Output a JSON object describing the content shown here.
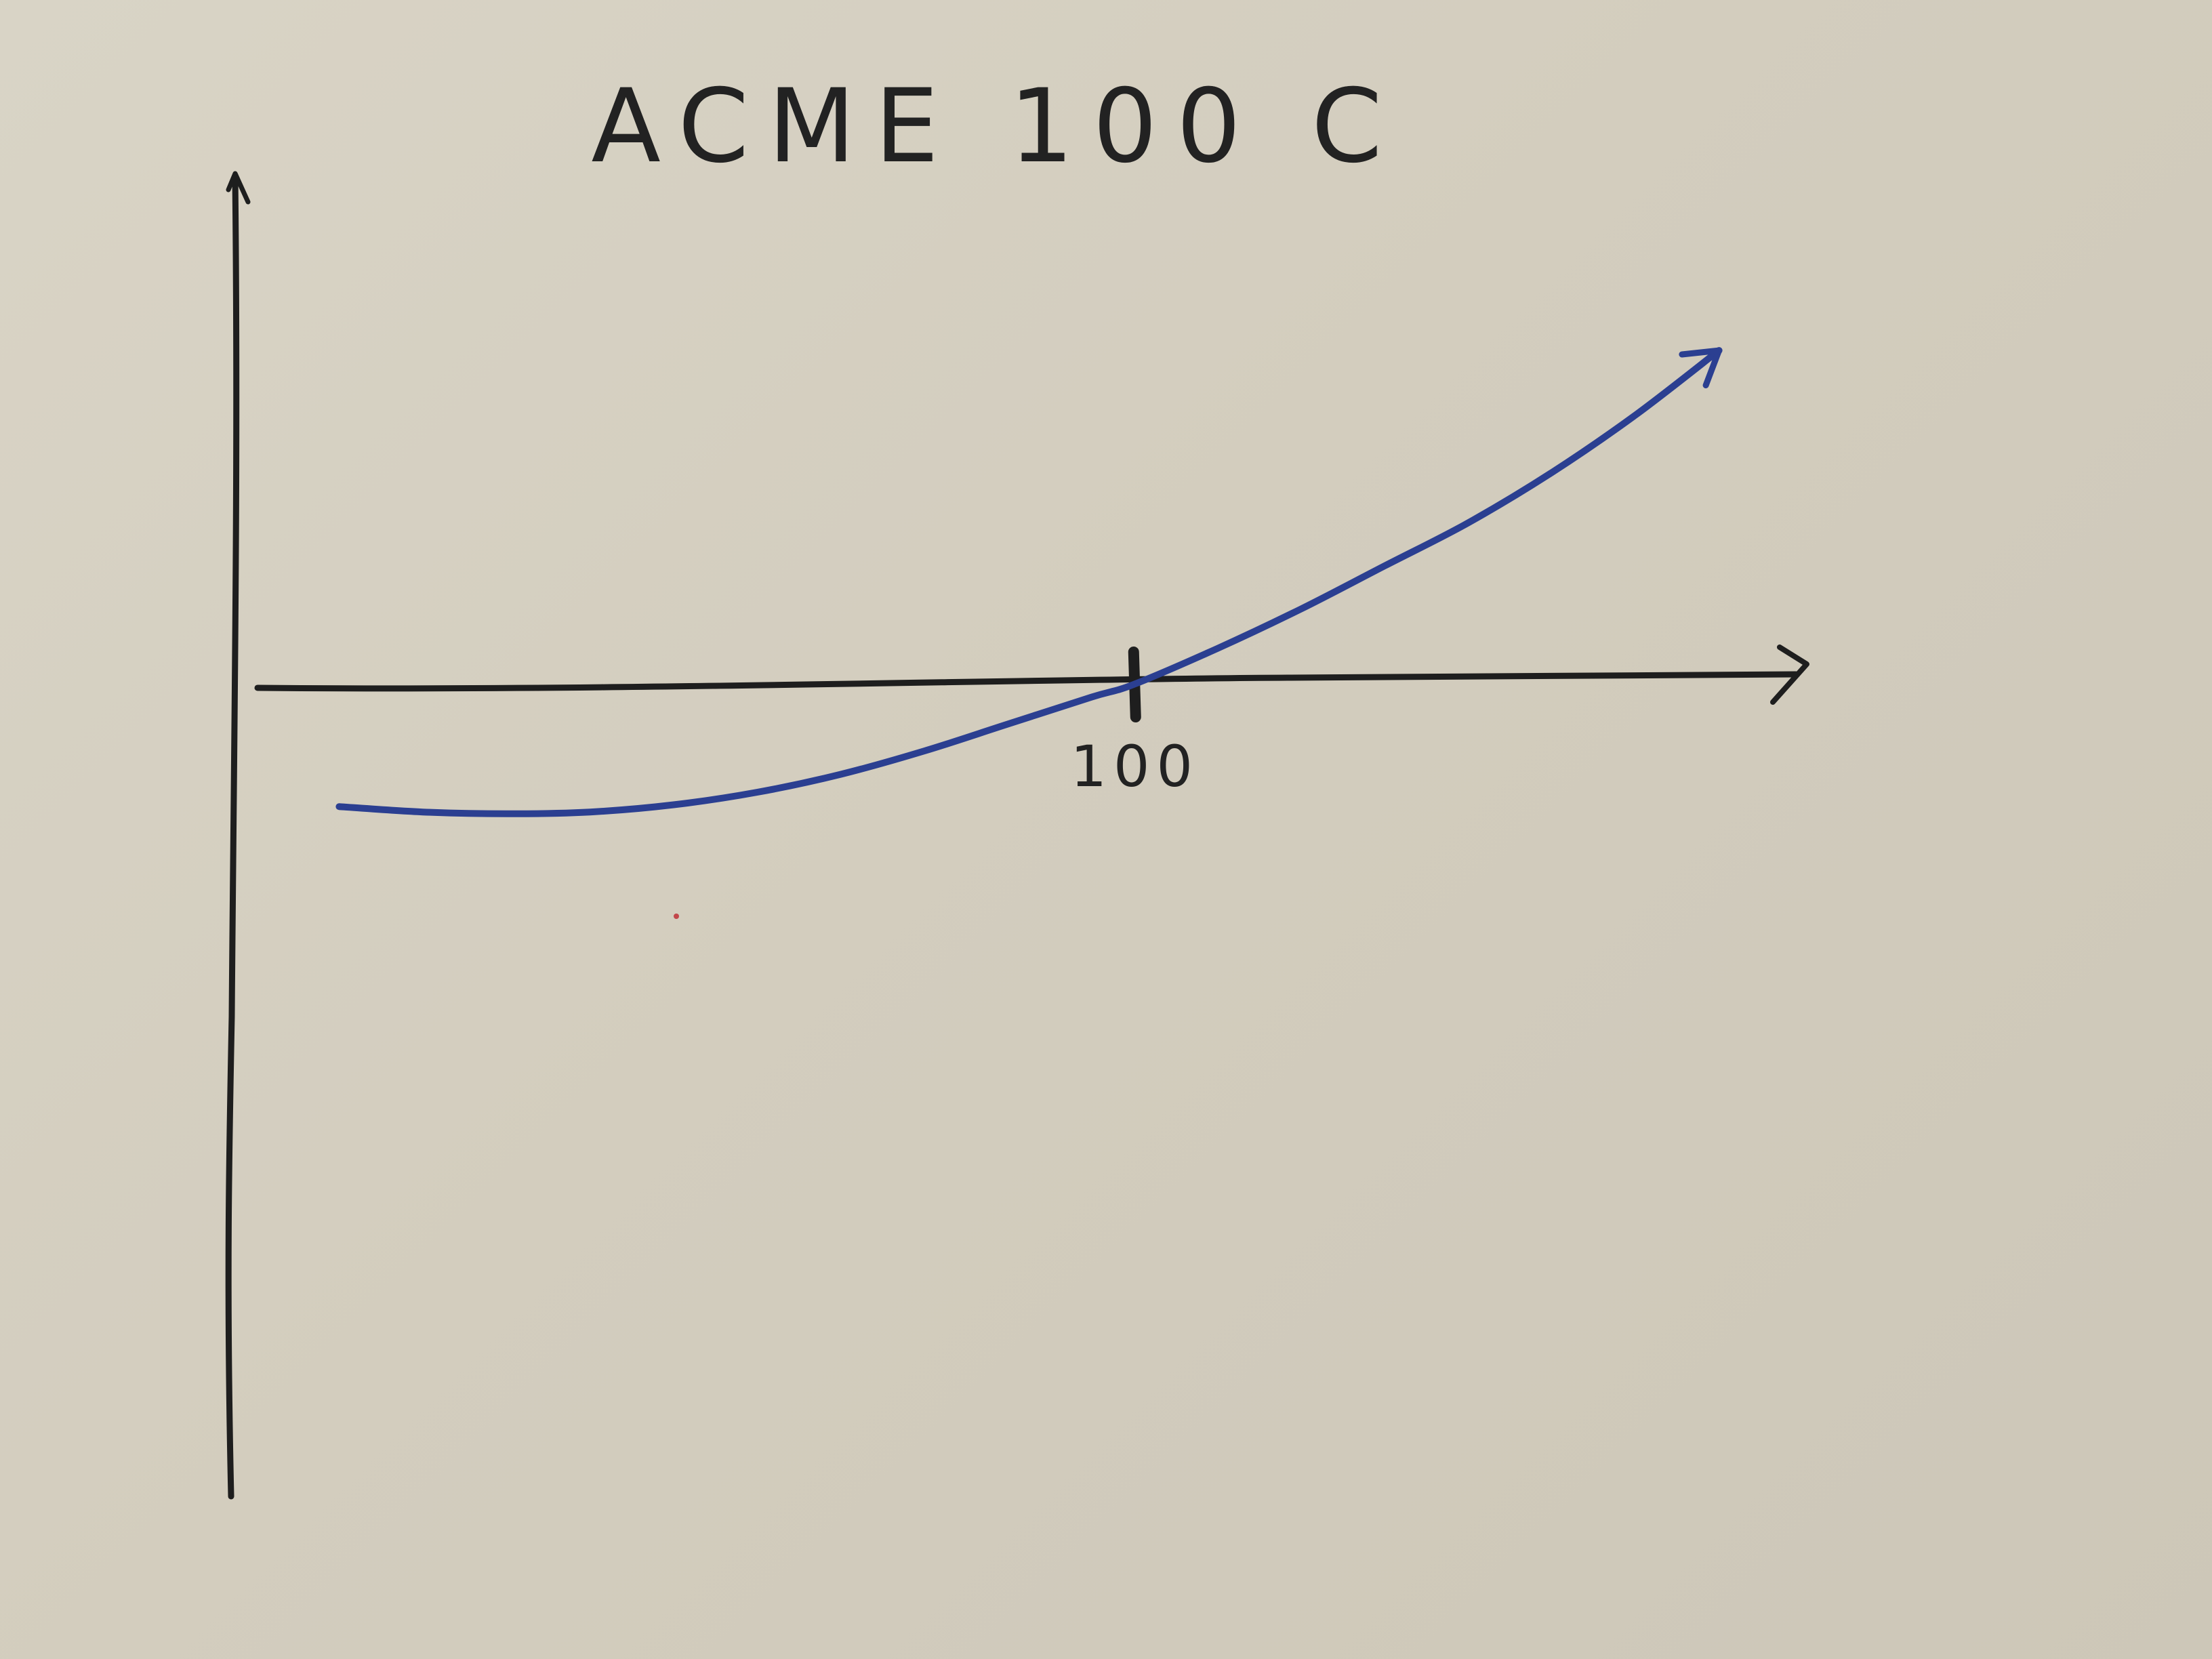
{
  "chart_data": {
    "type": "line",
    "title": "ACME 100 C",
    "xlabel": "",
    "ylabel": "",
    "x_ticks": [
      {
        "value": 100,
        "label": "100"
      }
    ],
    "xlim": [
      -8,
      180
    ],
    "ylim": [
      -5.6,
      10.4
    ],
    "grid": false,
    "legend": "none",
    "series": [
      {
        "color": "#2b3f91",
        "points": [
          [
            5,
            -3.4
          ],
          [
            15,
            -3.55
          ],
          [
            25,
            -3.6
          ],
          [
            35,
            -3.55
          ],
          [
            45,
            -3.35
          ],
          [
            55,
            -3.0
          ],
          [
            65,
            -2.5
          ],
          [
            75,
            -1.85
          ],
          [
            85,
            -1.1
          ],
          [
            95,
            -0.35
          ],
          [
            100,
            0
          ],
          [
            110,
            1.0
          ],
          [
            120,
            2.1
          ],
          [
            130,
            3.3
          ],
          [
            140,
            4.5
          ],
          [
            150,
            5.9
          ],
          [
            160,
            7.5
          ],
          [
            170,
            9.3
          ]
        ]
      }
    ],
    "colors": {
      "axis": "#1e1e1e",
      "curve": "#2b3f91"
    }
  }
}
